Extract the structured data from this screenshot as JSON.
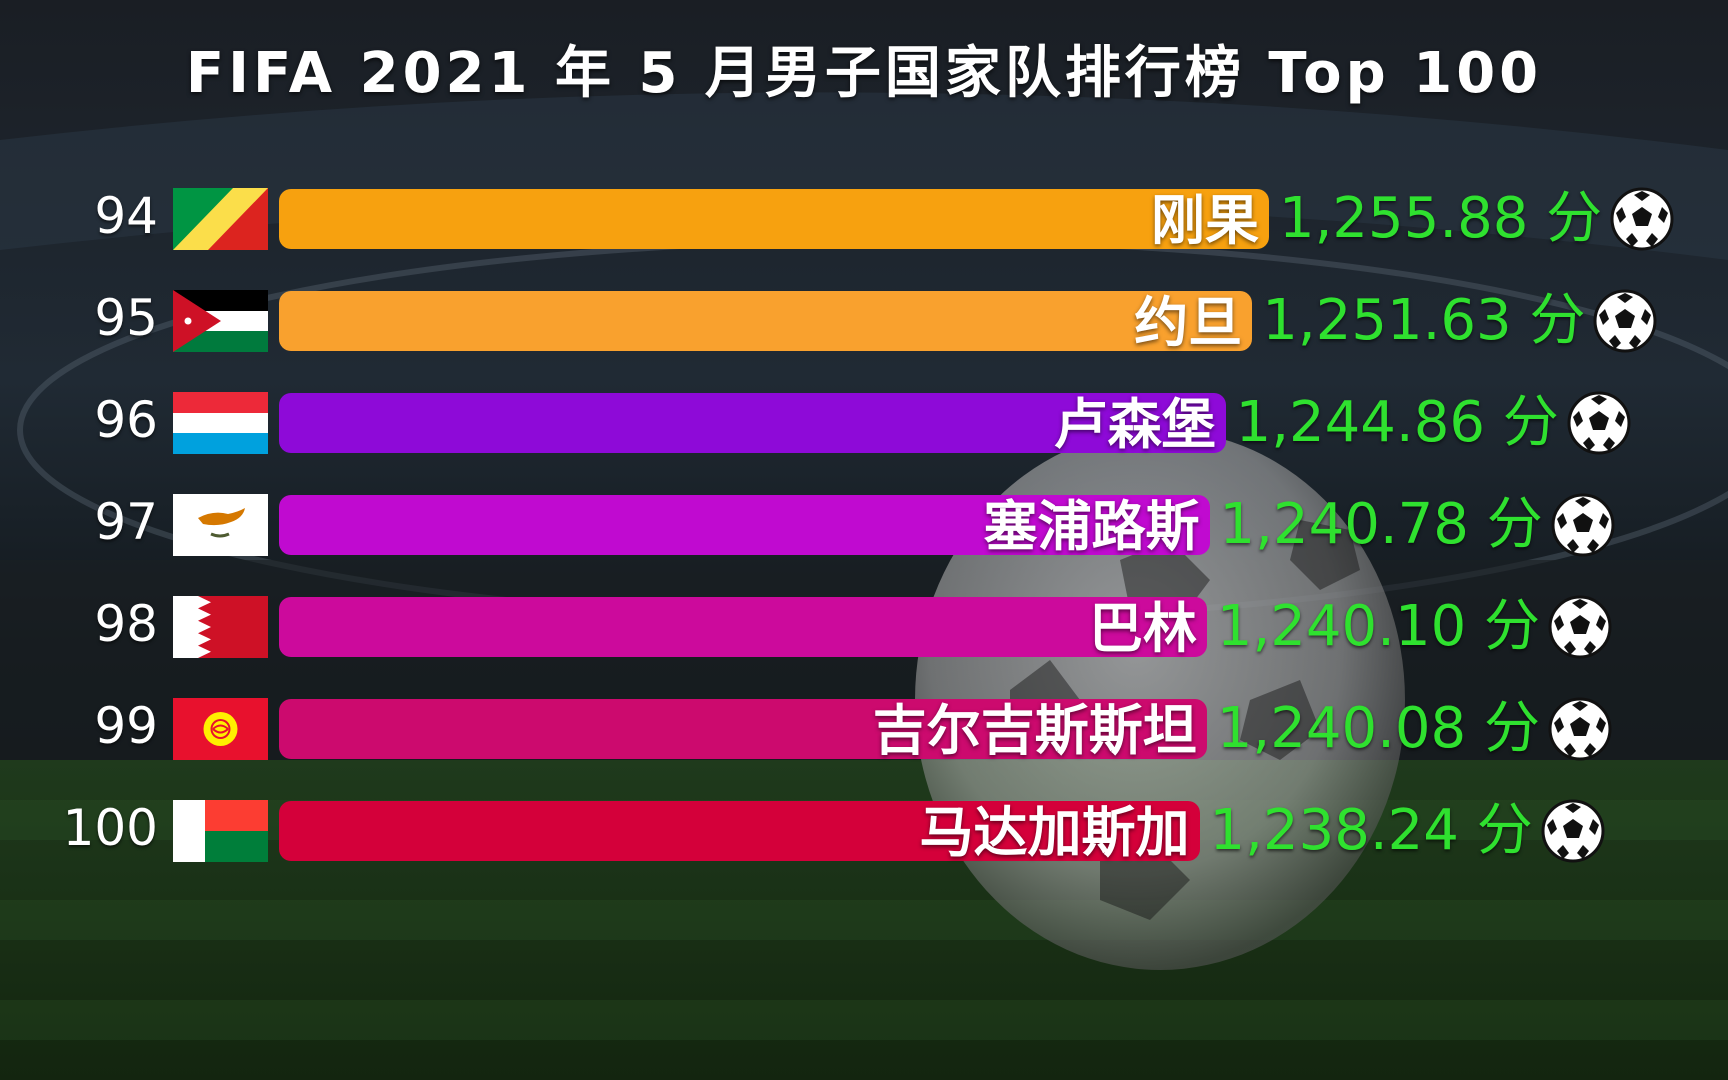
{
  "title": "FIFA 2021 年 5 月男子国家队排行榜 Top 100",
  "chart_data": {
    "type": "bar",
    "orientation": "horizontal",
    "title": "FIFA 2021 年 5 月男子国家队排行榜 Top 100",
    "value_unit": "分",
    "rows": [
      {
        "rank": "94",
        "country": "刚果",
        "value": 1255.88,
        "value_label": "1,255.88 分",
        "bar_color": "#f7a10f",
        "flag": "congo"
      },
      {
        "rank": "95",
        "country": "约旦",
        "value": 1251.63,
        "value_label": "1,251.63 分",
        "bar_color": "#f9a12e",
        "flag": "jordan"
      },
      {
        "rank": "96",
        "country": "卢森堡",
        "value": 1244.86,
        "value_label": "1,244.86 分",
        "bar_color": "#8e0ad8",
        "flag": "luxembourg"
      },
      {
        "rank": "97",
        "country": "塞浦路斯",
        "value": 1240.78,
        "value_label": "1,240.78 分",
        "bar_color": "#c00ad0",
        "flag": "cyprus"
      },
      {
        "rank": "98",
        "country": "巴林",
        "value": 1240.1,
        "value_label": "1,240.10 分",
        "bar_color": "#cc0a9c",
        "flag": "bahrain"
      },
      {
        "rank": "99",
        "country": "吉尔吉斯斯坦",
        "value": 1240.08,
        "value_label": "1,240.08 分",
        "bar_color": "#cc0a6e",
        "flag": "kyrgyzstan"
      },
      {
        "rank": "100",
        "country": "马达加斯加",
        "value": 1238.24,
        "value_label": "1,238.24 分",
        "bar_color": "#d4003a",
        "flag": "madagascar"
      }
    ],
    "value_icon": "soccer-ball-icon",
    "colors": {
      "score_text": "#2fe12f",
      "label_text": "#ffffff"
    }
  }
}
